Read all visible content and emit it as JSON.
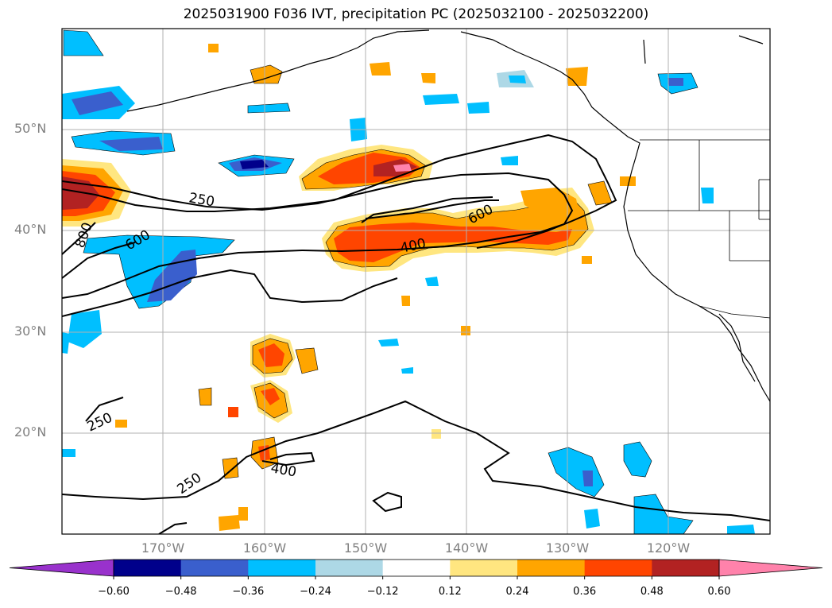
{
  "title": "2025031900 F036 IVT, precipitation PC (2025032100 - 2025032200)",
  "map": {
    "region": "North Pacific / western North America",
    "lat_labels": [
      "50°N",
      "40°N",
      "30°N",
      "20°N"
    ],
    "lon_labels": [
      "170°W",
      "160°W",
      "150°W",
      "140°W",
      "130°W",
      "120°W"
    ],
    "ivt_contour_labels": [
      "250",
      "800",
      "600",
      "600",
      "400",
      "250",
      "400",
      "250"
    ],
    "gridlines": true
  },
  "colorbar": {
    "ticks": [
      "−0.60",
      "−0.48",
      "−0.36",
      "−0.24",
      "−0.12",
      "0.12",
      "0.24",
      "0.36",
      "0.48",
      "0.60"
    ],
    "colors": [
      "#9932cc",
      "#00008b",
      "#3a5fcd",
      "#00bfff",
      "#add8e6",
      "#ffffff",
      "#ffe680",
      "#ffa500",
      "#ff4500",
      "#b22222",
      "#ff82ab"
    ],
    "extend": "both"
  }
}
